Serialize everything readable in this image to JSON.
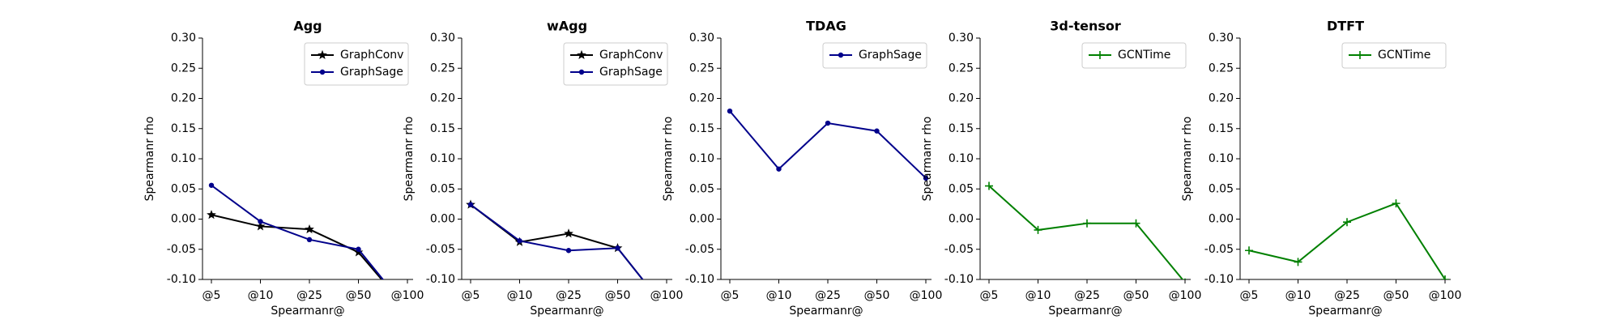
{
  "chart_data": [
    {
      "type": "line",
      "title": "Agg",
      "xlabel": "Spearmanr@",
      "ylabel": "Spearmanr rho",
      "categories": [
        "@5",
        "@10",
        "@25",
        "@50",
        "@100"
      ],
      "series": [
        {
          "name": "GraphConv",
          "color": "#000000",
          "marker": "star",
          "values": [
            0.007,
            -0.012,
            -0.017,
            -0.055,
            -0.15
          ]
        },
        {
          "name": "GraphSage",
          "color": "#00008b",
          "marker": "dot",
          "values": [
            0.056,
            -0.004,
            -0.034,
            -0.05,
            -0.15
          ]
        }
      ],
      "ylim": [
        -0.1,
        0.3
      ],
      "yticks": [
        {
          "value": -0.1,
          "label": "-0.10"
        },
        {
          "value": -0.05,
          "label": "-0.05"
        },
        {
          "value": 0,
          "label": "0.00"
        },
        {
          "value": 0.05,
          "label": "0.05"
        },
        {
          "value": 0.1,
          "label": "0.10"
        },
        {
          "value": 0.15,
          "label": "0.15"
        },
        {
          "value": 0.2,
          "label": "0.20"
        },
        {
          "value": 0.25,
          "label": "0.25"
        },
        {
          "value": 0.3,
          "label": "0.30"
        }
      ],
      "legend": "upper right"
    },
    {
      "type": "line",
      "title": "wAgg",
      "xlabel": "Spearmanr@",
      "ylabel": "Spearmanr rho",
      "categories": [
        "@5",
        "@10",
        "@25",
        "@50",
        "@100"
      ],
      "series": [
        {
          "name": "GraphConv",
          "color": "#000000",
          "marker": "star",
          "values": [
            0.024,
            -0.038,
            -0.024,
            -0.048,
            -0.15
          ]
        },
        {
          "name": "GraphSage",
          "color": "#00008b",
          "marker": "dot",
          "values": [
            0.024,
            -0.036,
            -0.052,
            -0.048,
            -0.15
          ]
        }
      ],
      "ylim": [
        -0.1,
        0.3
      ],
      "yticks": [
        {
          "value": -0.1,
          "label": "-0.10"
        },
        {
          "value": -0.05,
          "label": "-0.05"
        },
        {
          "value": 0,
          "label": "0.00"
        },
        {
          "value": 0.05,
          "label": "0.05"
        },
        {
          "value": 0.1,
          "label": "0.10"
        },
        {
          "value": 0.15,
          "label": "0.15"
        },
        {
          "value": 0.2,
          "label": "0.20"
        },
        {
          "value": 0.25,
          "label": "0.25"
        },
        {
          "value": 0.3,
          "label": "0.30"
        }
      ],
      "legend": "upper right"
    },
    {
      "type": "line",
      "title": "TDAG",
      "xlabel": "Spearmanr@",
      "ylabel": "Spearmanr rho",
      "categories": [
        "@5",
        "@10",
        "@25",
        "@50",
        "@100"
      ],
      "series": [
        {
          "name": "GraphSage",
          "color": "#00008b",
          "marker": "dot",
          "values": [
            0.179,
            0.083,
            0.159,
            0.146,
            0.068
          ]
        }
      ],
      "ylim": [
        -0.1,
        0.3
      ],
      "yticks": [
        {
          "value": -0.1,
          "label": "-0.10"
        },
        {
          "value": -0.05,
          "label": "-0.05"
        },
        {
          "value": 0,
          "label": "0.00"
        },
        {
          "value": 0.05,
          "label": "0.05"
        },
        {
          "value": 0.1,
          "label": "0.10"
        },
        {
          "value": 0.15,
          "label": "0.15"
        },
        {
          "value": 0.2,
          "label": "0.20"
        },
        {
          "value": 0.25,
          "label": "0.25"
        },
        {
          "value": 0.3,
          "label": "0.30"
        }
      ],
      "legend": "upper right"
    },
    {
      "type": "line",
      "title": "3d-tensor",
      "xlabel": "Spearmanr@",
      "ylabel": "Spearmanr rho",
      "categories": [
        "@5",
        "@10",
        "@25",
        "@50",
        "@100"
      ],
      "series": [
        {
          "name": "GCNTime",
          "color": "#008000",
          "marker": "plus",
          "values": [
            0.055,
            -0.018,
            -0.007,
            -0.007,
            -0.105
          ]
        }
      ],
      "ylim": [
        -0.1,
        0.3
      ],
      "yticks": [
        {
          "value": -0.1,
          "label": "-0.10"
        },
        {
          "value": -0.05,
          "label": "-0.05"
        },
        {
          "value": 0,
          "label": "0.00"
        },
        {
          "value": 0.05,
          "label": "0.05"
        },
        {
          "value": 0.1,
          "label": "0.10"
        },
        {
          "value": 0.15,
          "label": "0.15"
        },
        {
          "value": 0.2,
          "label": "0.20"
        },
        {
          "value": 0.25,
          "label": "0.25"
        },
        {
          "value": 0.3,
          "label": "0.30"
        }
      ],
      "legend": "upper right"
    },
    {
      "type": "line",
      "title": "DTFT",
      "xlabel": "Spearmanr@",
      "ylabel": "Spearmanr rho",
      "categories": [
        "@5",
        "@10",
        "@25",
        "@50",
        "@100"
      ],
      "series": [
        {
          "name": "GCNTime",
          "color": "#008000",
          "marker": "plus",
          "values": [
            -0.052,
            -0.071,
            -0.005,
            0.026,
            -0.1
          ]
        }
      ],
      "ylim": [
        -0.1,
        0.3
      ],
      "yticks": [
        {
          "value": -0.1,
          "label": "-0.10"
        },
        {
          "value": -0.05,
          "label": "-0.05"
        },
        {
          "value": 0,
          "label": "0.00"
        },
        {
          "value": 0.05,
          "label": "0.05"
        },
        {
          "value": 0.1,
          "label": "0.10"
        },
        {
          "value": 0.15,
          "label": "0.15"
        },
        {
          "value": 0.2,
          "label": "0.20"
        },
        {
          "value": 0.25,
          "label": "0.25"
        },
        {
          "value": 0.3,
          "label": "0.30"
        }
      ],
      "legend": "upper right"
    }
  ]
}
